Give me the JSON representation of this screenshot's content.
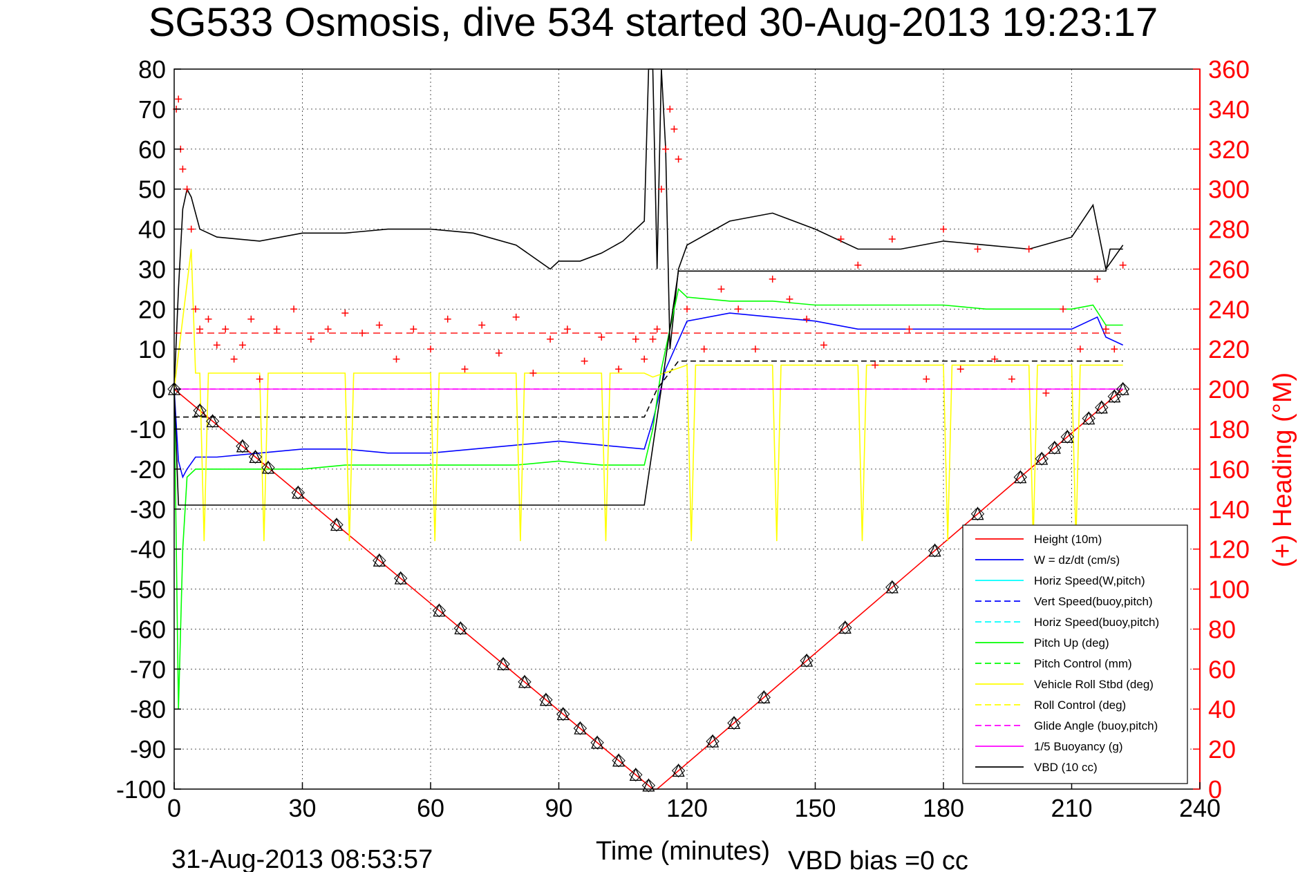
{
  "chart_data": {
    "type": "line",
    "title": "SG533 Osmosis, dive 534 started 30-Aug-2013 19:23:17",
    "xlabel": "Time (minutes)",
    "ylabel_right": "(+) Heading (°M)",
    "footer_date": "31-Aug-2013 08:53:57",
    "footer_vbd": "VBD bias =0 cc",
    "xlim": [
      0,
      240
    ],
    "ylim": [
      -100,
      80
    ],
    "ylim_right": [
      0,
      360
    ],
    "xticks": [
      0,
      30,
      60,
      90,
      120,
      150,
      180,
      210,
      240
    ],
    "yticks": [
      80,
      70,
      60,
      50,
      40,
      30,
      20,
      10,
      0,
      -10,
      -20,
      -30,
      -40,
      -50,
      -60,
      -70,
      -80,
      -90,
      -100
    ],
    "yticks_right": [
      360,
      340,
      320,
      300,
      280,
      260,
      240,
      220,
      200,
      180,
      160,
      140,
      120,
      100,
      80,
      60,
      40,
      20,
      0
    ],
    "grid": true,
    "legend_position": "bottom-right",
    "colors": {
      "height": "#ff0000",
      "w": "#0000ff",
      "horiz_speed": "#00ffff",
      "pitch": "#00ff00",
      "roll": "#ffff00",
      "glide": "#ff00ff",
      "vbd": "#000000",
      "heading": "#ff0000"
    },
    "legend": [
      {
        "label": "Height (10m)",
        "color": "#ff0000",
        "dash": false
      },
      {
        "label": "W = dz/dt (cm/s)",
        "color": "#0000ff",
        "dash": false
      },
      {
        "label": "Horiz Speed(W,pitch)",
        "color": "#00ffff",
        "dash": false
      },
      {
        "label": "Vert Speed(buoy,pitch)",
        "color": "#0000ff",
        "dash": true
      },
      {
        "label": "Horiz Speed(buoy,pitch)",
        "color": "#00ffff",
        "dash": true
      },
      {
        "label": "Pitch Up (deg)",
        "color": "#00ff00",
        "dash": false
      },
      {
        "label": "Pitch Control (mm)",
        "color": "#00ff00",
        "dash": true
      },
      {
        "label": "Vehicle Roll Stbd (deg)",
        "color": "#ffff00",
        "dash": false
      },
      {
        "label": "Roll Control (deg)",
        "color": "#ffff00",
        "dash": true
      },
      {
        "label": "Glide Angle (buoy,pitch)",
        "color": "#ff00ff",
        "dash": true
      },
      {
        "label": "1/5 Buoyancy (g)",
        "color": "#ff00ff",
        "dash": false
      },
      {
        "label": "VBD (10 cc)",
        "color": "#000000",
        "dash": false
      }
    ],
    "series": [
      {
        "key": "height",
        "name": "Height (10m)",
        "x": [
          0,
          112,
          113,
          222
        ],
        "y": [
          0,
          -100,
          -100,
          0
        ]
      },
      {
        "key": "w",
        "name": "W = dz/dt (cm/s)",
        "x": [
          0,
          1,
          2,
          3,
          5,
          10,
          20,
          30,
          40,
          50,
          60,
          70,
          80,
          90,
          100,
          110,
          112,
          115,
          120,
          130,
          140,
          150,
          160,
          170,
          180,
          190,
          200,
          210,
          216,
          218,
          222
        ],
        "y": [
          0,
          -18,
          -22,
          -20,
          -17,
          -17,
          -16,
          -15,
          -15,
          -16,
          -16,
          -15,
          -14,
          -13,
          -14,
          -15,
          -8,
          5,
          17,
          19,
          18,
          17,
          15,
          15,
          15,
          15,
          15,
          15,
          18,
          13,
          11
        ]
      },
      {
        "key": "horiz",
        "name": "Horiz Speed(W,pitch)",
        "x": [
          0,
          1,
          2,
          3,
          4,
          6,
          10,
          20,
          30,
          40,
          50,
          60,
          70,
          80,
          88,
          90,
          95,
          100,
          105,
          108,
          110,
          111,
          112,
          113,
          114,
          115,
          116,
          118,
          120,
          130,
          140,
          150,
          160,
          170,
          180,
          190,
          200,
          210,
          215,
          218,
          222
        ],
        "y": [
          0,
          25,
          45,
          50,
          48,
          40,
          38,
          37,
          39,
          39,
          40,
          40,
          39,
          36,
          30,
          32,
          32,
          34,
          37,
          40,
          42,
          80,
          80,
          30,
          80,
          60,
          10,
          30,
          36,
          42,
          44,
          40,
          35,
          35,
          37,
          36,
          35,
          38,
          46,
          30,
          36
        ]
      },
      {
        "key": "pitch",
        "name": "Pitch Up (deg)",
        "x": [
          0,
          1,
          2,
          3,
          5,
          10,
          20,
          30,
          40,
          50,
          60,
          70,
          80,
          90,
          100,
          110,
          112,
          114,
          118,
          120,
          130,
          140,
          150,
          160,
          170,
          180,
          190,
          200,
          210,
          215,
          218,
          222
        ],
        "y": [
          0,
          -80,
          -40,
          -22,
          -20,
          -20,
          -20,
          -20,
          -19,
          -19,
          -19,
          -19,
          -19,
          -18,
          -19,
          -19,
          -10,
          5,
          25,
          23,
          22,
          22,
          21,
          21,
          21,
          21,
          20,
          20,
          20,
          21,
          16,
          16
        ]
      },
      {
        "key": "pitch_ctrl",
        "name": "Pitch Control (mm)",
        "dash": true,
        "x": [
          0,
          3,
          10,
          110,
          113,
          118,
          222
        ],
        "y": [
          -7,
          -7,
          -7,
          -7,
          0,
          7,
          7
        ]
      },
      {
        "key": "roll",
        "name": "Vehicle Roll Stbd (deg)",
        "x": [
          0,
          4,
          5,
          6,
          7,
          8,
          20,
          21,
          22,
          40,
          41,
          42,
          60,
          61,
          62,
          80,
          81,
          82,
          100,
          101,
          102,
          110,
          112,
          120,
          121,
          122,
          140,
          141,
          142,
          160,
          161,
          162,
          180,
          181,
          182,
          200,
          201,
          202,
          210,
          211,
          212,
          222
        ],
        "y": [
          0,
          35,
          4,
          4,
          -38,
          4,
          4,
          -38,
          4,
          4,
          -38,
          4,
          4,
          -38,
          4,
          4,
          -38,
          4,
          4,
          -38,
          4,
          4,
          3,
          6,
          -38,
          6,
          6,
          -38,
          6,
          6,
          -38,
          6,
          6,
          -38,
          6,
          6,
          -38,
          6,
          6,
          -38,
          6,
          6
        ]
      },
      {
        "key": "glide",
        "name": "Glide Angle (buoy,pitch)",
        "dash": true,
        "x": [
          0,
          222
        ],
        "y": [
          0,
          0
        ]
      },
      {
        "key": "vbd",
        "name": "VBD (10 cc)",
        "x": [
          0,
          1,
          2,
          110,
          118,
          119,
          218,
          219,
          222
        ],
        "y": [
          0,
          -29,
          -29,
          -29,
          29.5,
          29.5,
          29.5,
          35,
          35
        ]
      },
      {
        "key": "heading",
        "name": "Heading",
        "axis": "right",
        "type": "scatter",
        "x": [
          0.5,
          1,
          1.5,
          2,
          3,
          4,
          5,
          6,
          8,
          10,
          12,
          14,
          16,
          18,
          20,
          24,
          28,
          32,
          36,
          40,
          44,
          48,
          52,
          56,
          60,
          64,
          68,
          72,
          76,
          80,
          84,
          88,
          92,
          96,
          100,
          104,
          108,
          110,
          112,
          113,
          114,
          115,
          116,
          117,
          118,
          120,
          124,
          128,
          132,
          136,
          140,
          144,
          148,
          152,
          156,
          160,
          164,
          168,
          172,
          176,
          180,
          184,
          188,
          192,
          196,
          200,
          204,
          208,
          212,
          216,
          218,
          220,
          222
        ],
        "y": [
          340,
          345,
          320,
          310,
          300,
          280,
          240,
          230,
          235,
          222,
          230,
          215,
          222,
          235,
          205,
          230,
          240,
          225,
          230,
          238,
          228,
          232,
          215,
          230,
          220,
          235,
          210,
          232,
          218,
          236,
          208,
          225,
          230,
          214,
          226,
          210,
          225,
          215,
          225,
          230,
          300,
          320,
          340,
          330,
          315,
          240,
          220,
          250,
          240,
          220,
          255,
          245,
          235,
          222,
          275,
          262,
          212,
          275,
          230,
          205,
          280,
          210,
          270,
          215,
          205,
          270,
          198,
          240,
          220,
          255,
          230,
          220,
          262
        ]
      }
    ]
  }
}
